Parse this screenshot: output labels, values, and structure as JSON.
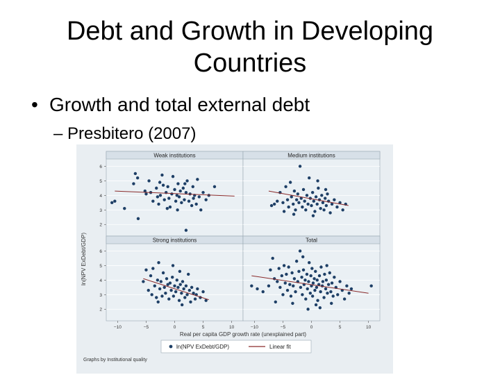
{
  "slide": {
    "title_line1": "Debt and Growth in Developing",
    "title_line2": "Countries",
    "bullet": "Growth and total external debt",
    "sub_bullet_dash": "–",
    "sub_bullet": "Presbitero (2007)"
  },
  "colors": {
    "points": "#1e3f66",
    "fit_line": "#8a2a2a",
    "panel_header": "#d7e0e8",
    "panel_bg": "#eaf0f4",
    "grid": "#ffffff",
    "border": "#9aa8b3"
  },
  "chart_data": {
    "type": "scatter",
    "title": "",
    "xlabel": "Real per capita GDP growth rate (unexplained part)",
    "ylabel": "ln(NPV ExDebt/GDP)",
    "xlim": [
      -12,
      12
    ],
    "ylim": [
      1.2,
      6.5
    ],
    "xticks": [
      -10,
      -5,
      0,
      5,
      10
    ],
    "yticks": [
      2,
      3,
      4,
      5,
      6
    ],
    "grid": true,
    "legend_position": "bottom",
    "legend": [
      "ln(NPV ExDebt/GDP)",
      "Linear fit"
    ],
    "note": "Graphs by Institutional quality",
    "panels": [
      {
        "name": "Weak institutions",
        "fit": {
          "x": [
            -10.5,
            10.5
          ],
          "y": [
            4.3,
            3.95
          ]
        },
        "points": [
          [
            -11,
            3.5
          ],
          [
            -10.5,
            3.6
          ],
          [
            -8.8,
            3.1
          ],
          [
            -7.2,
            4.8
          ],
          [
            -6.9,
            5.5
          ],
          [
            -6.5,
            5.2
          ],
          [
            -6.4,
            2.4
          ],
          [
            -5.2,
            4.3
          ],
          [
            -5,
            4.1
          ],
          [
            -4.5,
            5.0
          ],
          [
            -4.2,
            4.2
          ],
          [
            -3.8,
            3.6
          ],
          [
            -3.2,
            4.5
          ],
          [
            -3,
            3.9
          ],
          [
            -2.8,
            3.4
          ],
          [
            -2.5,
            4.0
          ],
          [
            -2.2,
            5.4
          ],
          [
            -2,
            4.7
          ],
          [
            -1.8,
            3.7
          ],
          [
            -1.5,
            4.2
          ],
          [
            -1.2,
            4.6
          ],
          [
            -1,
            3.8
          ],
          [
            -0.8,
            3.2
          ],
          [
            -0.5,
            4.1
          ],
          [
            -0.3,
            5.3
          ],
          [
            0,
            4.4
          ],
          [
            0.2,
            3.6
          ],
          [
            0.4,
            4.0
          ],
          [
            0.6,
            4.8
          ],
          [
            0.8,
            3.9
          ],
          [
            1,
            4.3
          ],
          [
            1.2,
            3.5
          ],
          [
            1.5,
            4.5
          ],
          [
            1.7,
            3.7
          ],
          [
            2,
            4.2
          ],
          [
            2.2,
            5.0
          ],
          [
            2.5,
            3.6
          ],
          [
            2.7,
            4.1
          ],
          [
            3,
            3.3
          ],
          [
            3.2,
            4.6
          ],
          [
            3.5,
            4.0
          ],
          [
            3.8,
            3.4
          ],
          [
            4,
            5.1
          ],
          [
            4.3,
            3.9
          ],
          [
            4.6,
            3.0
          ],
          [
            5,
            4.2
          ],
          [
            5.5,
            3.7
          ],
          [
            6,
            4.0
          ],
          [
            7,
            4.6
          ],
          [
            2,
            1.6
          ],
          [
            -1.3,
            3.1
          ],
          [
            0.5,
            3.0
          ],
          [
            1.8,
            4.8
          ],
          [
            -2.6,
            4.9
          ],
          [
            3.3,
            3.8
          ]
        ]
      },
      {
        "name": "Medium institutions",
        "fit": {
          "x": [
            -7.5,
            6.5
          ],
          "y": [
            4.3,
            3.3
          ]
        },
        "points": [
          [
            -7,
            3.3
          ],
          [
            -6.5,
            3.4
          ],
          [
            -6,
            3.6
          ],
          [
            -5.5,
            4.2
          ],
          [
            -5,
            3.5
          ],
          [
            -4.8,
            2.9
          ],
          [
            -4.5,
            4.6
          ],
          [
            -4.2,
            3.7
          ],
          [
            -4,
            3.2
          ],
          [
            -3.7,
            4.9
          ],
          [
            -3.5,
            3.9
          ],
          [
            -3.2,
            3.4
          ],
          [
            -3,
            4.3
          ],
          [
            -2.8,
            3.0
          ],
          [
            -2.6,
            3.7
          ],
          [
            -2.4,
            4.1
          ],
          [
            -2.2,
            3.5
          ],
          [
            -2,
            6.0
          ],
          [
            -1.8,
            3.8
          ],
          [
            -1.6,
            3.2
          ],
          [
            -1.4,
            4.4
          ],
          [
            -1.2,
            3.6
          ],
          [
            -1,
            3.0
          ],
          [
            -0.8,
            4.0
          ],
          [
            -0.6,
            3.4
          ],
          [
            -0.4,
            5.2
          ],
          [
            -0.2,
            3.8
          ],
          [
            0,
            3.3
          ],
          [
            0.2,
            4.2
          ],
          [
            0.4,
            3.6
          ],
          [
            0.6,
            2.9
          ],
          [
            0.8,
            3.9
          ],
          [
            1,
            3.4
          ],
          [
            1.2,
            4.5
          ],
          [
            1.4,
            3.7
          ],
          [
            1.6,
            3.1
          ],
          [
            1.8,
            4.0
          ],
          [
            2,
            3.5
          ],
          [
            2.2,
            3.0
          ],
          [
            2.4,
            3.8
          ],
          [
            2.6,
            3.3
          ],
          [
            2.8,
            4.1
          ],
          [
            3,
            3.6
          ],
          [
            3.3,
            2.8
          ],
          [
            3.6,
            3.4
          ],
          [
            4,
            3.7
          ],
          [
            4.5,
            3.2
          ],
          [
            5,
            3.5
          ],
          [
            5.5,
            3.0
          ],
          [
            6,
            3.4
          ],
          [
            1.1,
            5.0
          ],
          [
            -3.1,
            2.7
          ],
          [
            0.3,
            2.6
          ],
          [
            2.5,
            4.4
          ]
        ]
      },
      {
        "name": "Strong institutions",
        "fit": {
          "x": [
            -5.5,
            6
          ],
          "y": [
            4.1,
            2.65
          ]
        },
        "points": [
          [
            -5.5,
            3.9
          ],
          [
            -5,
            4.7
          ],
          [
            -4.6,
            3.3
          ],
          [
            -4.2,
            4.3
          ],
          [
            -4,
            3.0
          ],
          [
            -3.8,
            4.8
          ],
          [
            -3.5,
            3.6
          ],
          [
            -3.2,
            2.8
          ],
          [
            -3,
            4.0
          ],
          [
            -2.8,
            5.2
          ],
          [
            -2.6,
            3.4
          ],
          [
            -2.4,
            3.9
          ],
          [
            -2.2,
            2.9
          ],
          [
            -2,
            4.5
          ],
          [
            -1.8,
            3.5
          ],
          [
            -1.6,
            3.1
          ],
          [
            -1.4,
            4.1
          ],
          [
            -1.2,
            3.7
          ],
          [
            -1,
            2.7
          ],
          [
            -0.8,
            3.8
          ],
          [
            -0.6,
            3.3
          ],
          [
            -0.4,
            4.2
          ],
          [
            -0.2,
            2.9
          ],
          [
            0,
            3.6
          ],
          [
            0.2,
            3.2
          ],
          [
            0.4,
            4.0
          ],
          [
            0.6,
            3.5
          ],
          [
            0.8,
            2.6
          ],
          [
            1,
            3.7
          ],
          [
            1.2,
            3.1
          ],
          [
            1.4,
            3.9
          ],
          [
            1.6,
            3.4
          ],
          [
            1.8,
            2.8
          ],
          [
            2,
            3.6
          ],
          [
            2.2,
            3.0
          ],
          [
            2.4,
            4.4
          ],
          [
            2.6,
            3.3
          ],
          [
            2.8,
            2.5
          ],
          [
            3,
            3.5
          ],
          [
            3.3,
            3.1
          ],
          [
            3.6,
            2.7
          ],
          [
            4,
            3.4
          ],
          [
            4.5,
            2.8
          ],
          [
            5,
            3.2
          ],
          [
            5.5,
            2.6
          ],
          [
            -0.3,
            5.0
          ],
          [
            1.3,
            2.3
          ],
          [
            -2.9,
            2.5
          ],
          [
            0.9,
            4.6
          ],
          [
            3.8,
            3.0
          ]
        ]
      },
      {
        "name": "Total",
        "fit": {
          "x": [
            -10.5,
            10
          ],
          "y": [
            4.3,
            3.1
          ]
        },
        "points": [
          [
            -10.5,
            3.6
          ],
          [
            -9.5,
            3.4
          ],
          [
            -8.5,
            3.2
          ],
          [
            -7.5,
            3.6
          ],
          [
            -7.2,
            4.7
          ],
          [
            -6.8,
            5.5
          ],
          [
            -6.5,
            4.1
          ],
          [
            -6.3,
            2.5
          ],
          [
            -6,
            3.9
          ],
          [
            -5.7,
            4.8
          ],
          [
            -5.5,
            3.5
          ],
          [
            -5.2,
            4.3
          ],
          [
            -5,
            3.0
          ],
          [
            -4.8,
            5.0
          ],
          [
            -4.6,
            3.8
          ],
          [
            -4.4,
            4.4
          ],
          [
            -4.2,
            3.3
          ],
          [
            -4,
            4.9
          ],
          [
            -3.8,
            3.7
          ],
          [
            -3.6,
            2.9
          ],
          [
            -3.4,
            4.5
          ],
          [
            -3.2,
            3.6
          ],
          [
            -3,
            4.1
          ],
          [
            -2.8,
            3.2
          ],
          [
            -2.6,
            5.3
          ],
          [
            -2.4,
            3.9
          ],
          [
            -2.2,
            4.6
          ],
          [
            -2,
            6.0
          ],
          [
            -1.9,
            3.5
          ],
          [
            -1.7,
            4.2
          ],
          [
            -1.6,
            3.0
          ],
          [
            -1.4,
            4.7
          ],
          [
            -1.3,
            3.7
          ],
          [
            -1.1,
            4.0
          ],
          [
            -1,
            2.7
          ],
          [
            -0.8,
            4.4
          ],
          [
            -0.7,
            3.4
          ],
          [
            -0.5,
            3.9
          ],
          [
            -0.4,
            5.2
          ],
          [
            -0.2,
            3.1
          ],
          [
            -0.1,
            4.3
          ],
          [
            0,
            3.6
          ],
          [
            0.1,
            4.8
          ],
          [
            0.2,
            2.9
          ],
          [
            0.3,
            3.8
          ],
          [
            0.5,
            4.1
          ],
          [
            0.6,
            3.3
          ],
          [
            0.7,
            4.6
          ],
          [
            0.9,
            3.5
          ],
          [
            1,
            4.0
          ],
          [
            1.1,
            2.6
          ],
          [
            1.3,
            3.7
          ],
          [
            1.4,
            4.3
          ],
          [
            1.6,
            3.2
          ],
          [
            1.7,
            4.9
          ],
          [
            1.9,
            3.6
          ],
          [
            2,
            3.9
          ],
          [
            2.2,
            2.8
          ],
          [
            2.3,
            4.4
          ],
          [
            2.5,
            3.4
          ],
          [
            2.6,
            4.0
          ],
          [
            2.8,
            3.1
          ],
          [
            3,
            3.7
          ],
          [
            3.2,
            4.5
          ],
          [
            3.4,
            3.2
          ],
          [
            3.6,
            3.8
          ],
          [
            3.8,
            2.9
          ],
          [
            4,
            4.2
          ],
          [
            4.3,
            3.5
          ],
          [
            4.6,
            3.0
          ],
          [
            5,
            3.9
          ],
          [
            5.4,
            3.3
          ],
          [
            5.8,
            2.7
          ],
          [
            6.2,
            3.6
          ],
          [
            6.6,
            3.1
          ],
          [
            7,
            3.4
          ],
          [
            10.5,
            3.6
          ],
          [
            -3.3,
            2.4
          ],
          [
            0.8,
            2.3
          ],
          [
            -1.5,
            5.6
          ],
          [
            2.7,
            5.0
          ],
          [
            1.5,
            2.1
          ],
          [
            -0.6,
            2.0
          ],
          [
            3.5,
            2.4
          ]
        ]
      }
    ]
  }
}
